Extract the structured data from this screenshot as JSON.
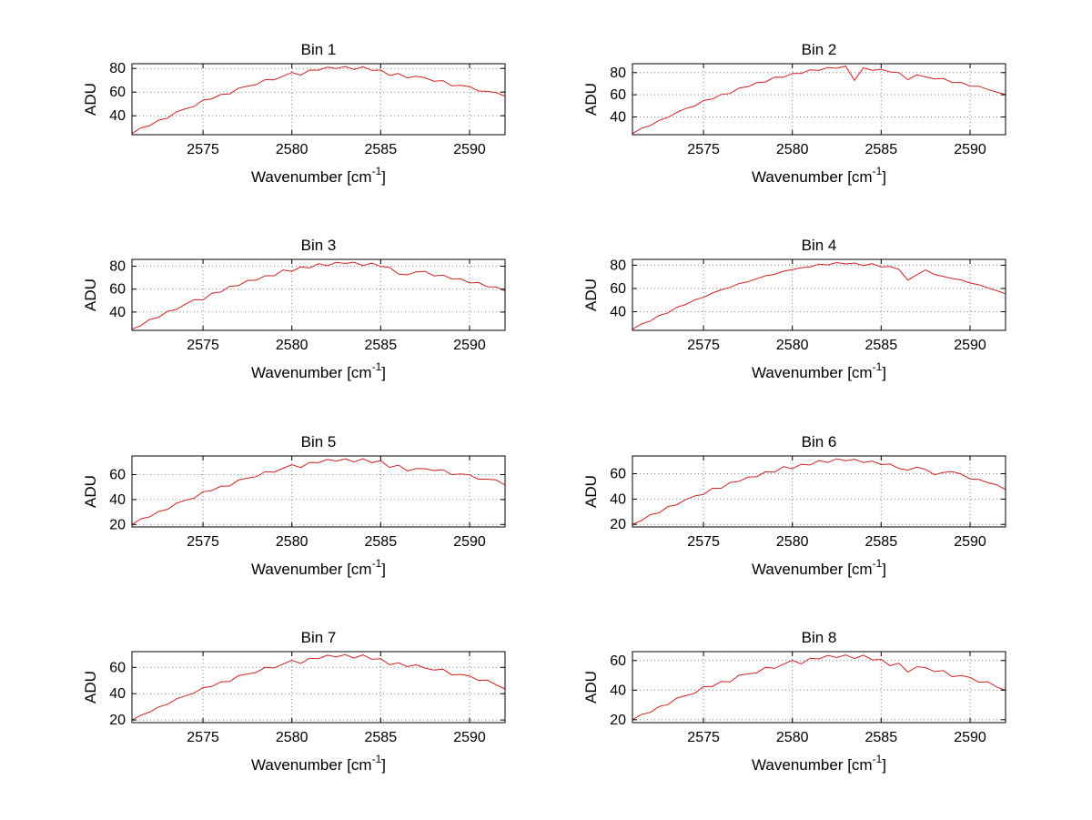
{
  "colors": {
    "line": "#cc2222",
    "grid": "#808080",
    "axis": "#000000",
    "text": "#000000",
    "background": "#ffffff"
  },
  "chart_data": [
    {
      "type": "line",
      "title": "Bin 1",
      "xlabel": "Wavenumber [cm^-1]",
      "ylabel": "ADU",
      "xlim": [
        2571,
        2592
      ],
      "xticks": [
        2575,
        2580,
        2585,
        2590
      ],
      "ylim": [
        24,
        84
      ],
      "yticks": [
        40,
        60,
        80
      ],
      "x_start": 2571,
      "x_step": 0.5,
      "grid": true,
      "values": [
        25.0,
        29.8,
        31.6,
        36.2,
        38.0,
        43.3,
        45.9,
        47.8,
        53.2,
        54.3,
        58.0,
        58.4,
        63.4,
        65.0,
        66.4,
        70.5,
        70.4,
        73.5,
        76.6,
        74.3,
        78.6,
        78.5,
        81.1,
        79.9,
        81.7,
        79.1,
        81.5,
        78.3,
        78.7,
        74.1,
        75.7,
        72.0,
        73.5,
        72.1,
        69.2,
        69.7,
        65.3,
        65.7,
        64.6,
        60.9,
        60.6,
        59.6,
        56.6
      ]
    },
    {
      "type": "line",
      "title": "Bin 2",
      "xlabel": "Wavenumber [cm^-1]",
      "ylabel": "ADU",
      "xlim": [
        2571,
        2592
      ],
      "xticks": [
        2575,
        2580,
        2585,
        2590
      ],
      "ylim": [
        24,
        88
      ],
      "yticks": [
        40,
        60,
        80
      ],
      "x_start": 2571,
      "x_step": 0.5,
      "grid": true,
      "values": [
        25.0,
        29.8,
        32.1,
        37.0,
        39.5,
        44.1,
        47.6,
        49.8,
        54.8,
        56.2,
        60.3,
        61.2,
        66.1,
        67.2,
        70.9,
        71.6,
        75.9,
        75.8,
        79.2,
        79.3,
        82.4,
        81.9,
        84.6,
        83.9,
        85.9,
        73.0,
        84.2,
        82.1,
        83.0,
        80.6,
        79.9,
        73.5,
        78.0,
        76.1,
        74.3,
        74.6,
        71.0,
        71.2,
        67.8,
        67.7,
        64.8,
        62.5,
        60.2
      ]
    },
    {
      "type": "line",
      "title": "Bin 3",
      "xlabel": "Wavenumber [cm^-1]",
      "ylabel": "ADU",
      "xlim": [
        2571,
        2592
      ],
      "xticks": [
        2575,
        2580,
        2585,
        2590
      ],
      "ylim": [
        24,
        86
      ],
      "yticks": [
        40,
        60,
        80
      ],
      "x_start": 2571,
      "x_step": 0.5,
      "grid": true,
      "values": [
        25.0,
        28.2,
        33.5,
        35.3,
        40.6,
        42.3,
        46.8,
        50.8,
        50.6,
        56.5,
        57.5,
        62.5,
        63.1,
        67.5,
        67.9,
        71.7,
        71.7,
        76.8,
        75.5,
        79.4,
        78.5,
        82.2,
        80.4,
        83.4,
        82.4,
        83.5,
        80.5,
        82.8,
        79.8,
        79.0,
        73.2,
        72.5,
        75.0,
        75.6,
        71.5,
        72.3,
        68.9,
        69.1,
        65.4,
        65.8,
        62.1,
        61.9,
        58.3
      ]
    },
    {
      "type": "line",
      "title": "Bin 4",
      "xlabel": "Wavenumber [cm^-1]",
      "ylabel": "ADU",
      "xlim": [
        2571,
        2592
      ],
      "xticks": [
        2575,
        2580,
        2585,
        2590
      ],
      "ylim": [
        24,
        85
      ],
      "yticks": [
        40,
        60,
        80
      ],
      "x_start": 2571,
      "x_step": 0.5,
      "grid": true,
      "values": [
        25.0,
        29.5,
        32.0,
        36.8,
        39.0,
        43.9,
        46.2,
        50.2,
        52.4,
        56.1,
        58.9,
        61.0,
        64.2,
        65.8,
        68.4,
        70.9,
        72.2,
        74.8,
        76.2,
        77.9,
        78.4,
        80.9,
        80.2,
        82.3,
        81.1,
        81.9,
        79.7,
        81.4,
        78.6,
        78.9,
        76.4,
        67.2,
        71.8,
        75.9,
        72.0,
        70.3,
        68.5,
        67.4,
        64.7,
        63.2,
        60.5,
        58.1,
        55.4
      ]
    },
    {
      "type": "line",
      "title": "Bin 5",
      "xlabel": "Wavenumber [cm^-1]",
      "ylabel": "ADU",
      "xlim": [
        2571,
        2592
      ],
      "xticks": [
        2575,
        2580,
        2585,
        2590
      ],
      "ylim": [
        18,
        75
      ],
      "yticks": [
        20,
        40,
        60
      ],
      "x_start": 2571,
      "x_step": 0.5,
      "grid": true,
      "values": [
        20.0,
        24.5,
        26.1,
        30.4,
        32.0,
        37.0,
        39.4,
        41.1,
        46.3,
        47.2,
        50.7,
        50.9,
        55.7,
        57.2,
        58.4,
        62.4,
        62.1,
        65.1,
        68.0,
        65.7,
        69.8,
        69.6,
        72.2,
        70.9,
        72.7,
        70.2,
        72.8,
        69.7,
        71.2,
        65.8,
        67.7,
        63.0,
        65.0,
        64.7,
        63.3,
        64.0,
        60.0,
        60.6,
        59.8,
        56.4,
        56.4,
        55.7,
        51.6
      ]
    },
    {
      "type": "line",
      "title": "Bin 6",
      "xlabel": "Wavenumber [cm^-1]",
      "ylabel": "ADU",
      "xlim": [
        2571,
        2592
      ],
      "xticks": [
        2575,
        2580,
        2585,
        2590
      ],
      "ylim": [
        18,
        74
      ],
      "yticks": [
        20,
        40,
        60
      ],
      "x_start": 2571,
      "x_step": 0.5,
      "grid": true,
      "values": [
        20.0,
        23.0,
        27.7,
        29.1,
        34.1,
        35.5,
        39.7,
        42.4,
        43.6,
        48.5,
        48.5,
        53.1,
        54.0,
        57.3,
        57.7,
        61.6,
        61.2,
        65.6,
        63.9,
        67.5,
        66.9,
        70.4,
        68.9,
        71.8,
        70.3,
        71.4,
        68.9,
        70.0,
        67.2,
        67.6,
        64.1,
        62.8,
        65.2,
        63.4,
        59.2,
        61.0,
        61.7,
        59.7,
        55.9,
        55.5,
        52.9,
        51.3,
        47.5
      ]
    },
    {
      "type": "line",
      "title": "Bin 7",
      "xlabel": "Wavenumber [cm^-1]",
      "ylabel": "ADU",
      "xlim": [
        2571,
        2592
      ],
      "xticks": [
        2575,
        2580,
        2585,
        2590
      ],
      "ylim": [
        18,
        72
      ],
      "yticks": [
        20,
        40,
        60
      ],
      "x_start": 2571,
      "x_step": 0.5,
      "grid": true,
      "values": [
        20.0,
        23.6,
        26.0,
        29.9,
        31.9,
        36.1,
        38.3,
        40.4,
        44.6,
        45.5,
        49.0,
        49.3,
        53.7,
        55.0,
        56.2,
        60.0,
        59.6,
        62.5,
        65.4,
        62.9,
        67.0,
        66.7,
        69.3,
        67.9,
        69.7,
        67.1,
        69.5,
        66.2,
        66.6,
        62.0,
        63.5,
        60.6,
        62.0,
        59.5,
        58.0,
        58.7,
        54.3,
        54.7,
        53.5,
        50.1,
        50.3,
        46.7,
        43.6
      ]
    },
    {
      "type": "line",
      "title": "Bin 8",
      "xlabel": "Wavenumber [cm^-1]",
      "ylabel": "ADU",
      "xlim": [
        2571,
        2592
      ],
      "xticks": [
        2575,
        2580,
        2585,
        2590
      ],
      "ylim": [
        18,
        66
      ],
      "yticks": [
        20,
        40,
        60
      ],
      "x_start": 2571,
      "x_step": 0.5,
      "grid": true,
      "values": [
        20.0,
        23.5,
        24.9,
        28.9,
        30.2,
        34.6,
        36.2,
        37.8,
        42.3,
        42.5,
        45.8,
        45.5,
        50.0,
        50.9,
        51.8,
        55.4,
        54.7,
        57.5,
        60.1,
        57.7,
        61.5,
        61.1,
        63.5,
        62.0,
        63.8,
        61.3,
        63.6,
        60.4,
        60.8,
        56.5,
        58.1,
        52.2,
        55.8,
        55.2,
        52.5,
        53.2,
        49.0,
        49.9,
        48.5,
        45.3,
        45.6,
        42.1,
        39.8
      ]
    }
  ]
}
